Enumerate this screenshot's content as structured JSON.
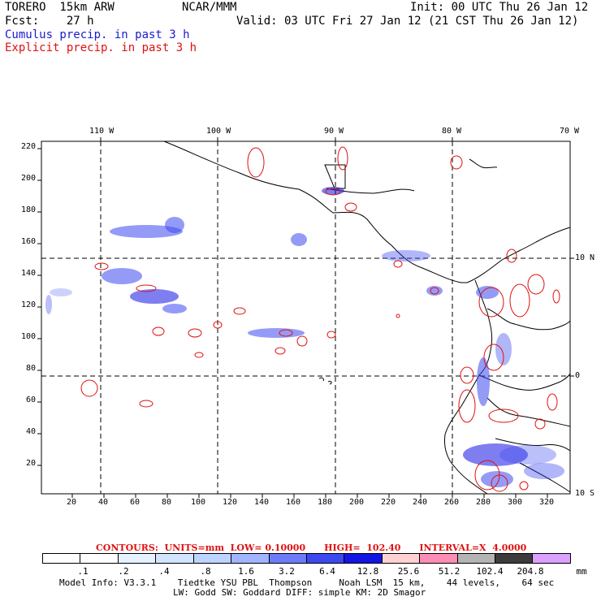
{
  "header": {
    "line1_left": "TORERO  15km ARW",
    "line1_mid": "NCAR/MMM",
    "line1_right": "Init: 00 UTC Thu 26 Jan 12",
    "line2_left": "Fcst:    27 h",
    "line2_right": "Valid: 03 UTC Fri 27 Jan 12 (21 CST Thu 26 Jan 12)",
    "field1": "Cumulus precip. in past 3 h",
    "field2": "Explicit precip. in past 3 h"
  },
  "map": {
    "top_lon_labels": [
      "110 W",
      "100 W",
      "90 W",
      "80 W",
      "70 W"
    ],
    "right_lat_labels": [
      "10 N",
      "0",
      "10 S"
    ],
    "left_grid_labels": [
      "220",
      "200",
      "180",
      "160",
      "140",
      "120",
      "100",
      "80",
      "60",
      "40",
      "20"
    ],
    "bottom_grid_labels": [
      "20",
      "40",
      "60",
      "80",
      "100",
      "120",
      "140",
      "160",
      "180",
      "200",
      "220",
      "240",
      "260",
      "280",
      "300",
      "320"
    ]
  },
  "contours_line": "CONTOURS:  UNITS=mm  LOW= 0.10000      HIGH=  102.40      INTERVAL=X  4.0000",
  "colorbar": {
    "labels": [
      ".1",
      ".2",
      ".4",
      ".8",
      "1.6",
      "3.2",
      "6.4",
      "12.8",
      "25.6",
      "51.2",
      "102.4",
      "204.8"
    ],
    "unit": "mm",
    "colors": [
      "#ffffff",
      "#ffffff",
      "#e6f2ff",
      "#d2e4ff",
      "#bcd4ff",
      "#a0b4ff",
      "#6c7cf8",
      "#3c48f0",
      "#1414e4",
      "#ffd2d2",
      "#ff8cb4",
      "#b4b4b4",
      "#3c3c3c",
      "#dca0ff"
    ]
  },
  "footer": {
    "line1": "Model Info: V3.3.1    Tiedtke YSU PBL  Thompson     Noah LSM  15 km,    44 levels,    64 sec",
    "line2": "LW: Godd SW: Goddard DIFF: simple KM: 2D Smagor"
  }
}
